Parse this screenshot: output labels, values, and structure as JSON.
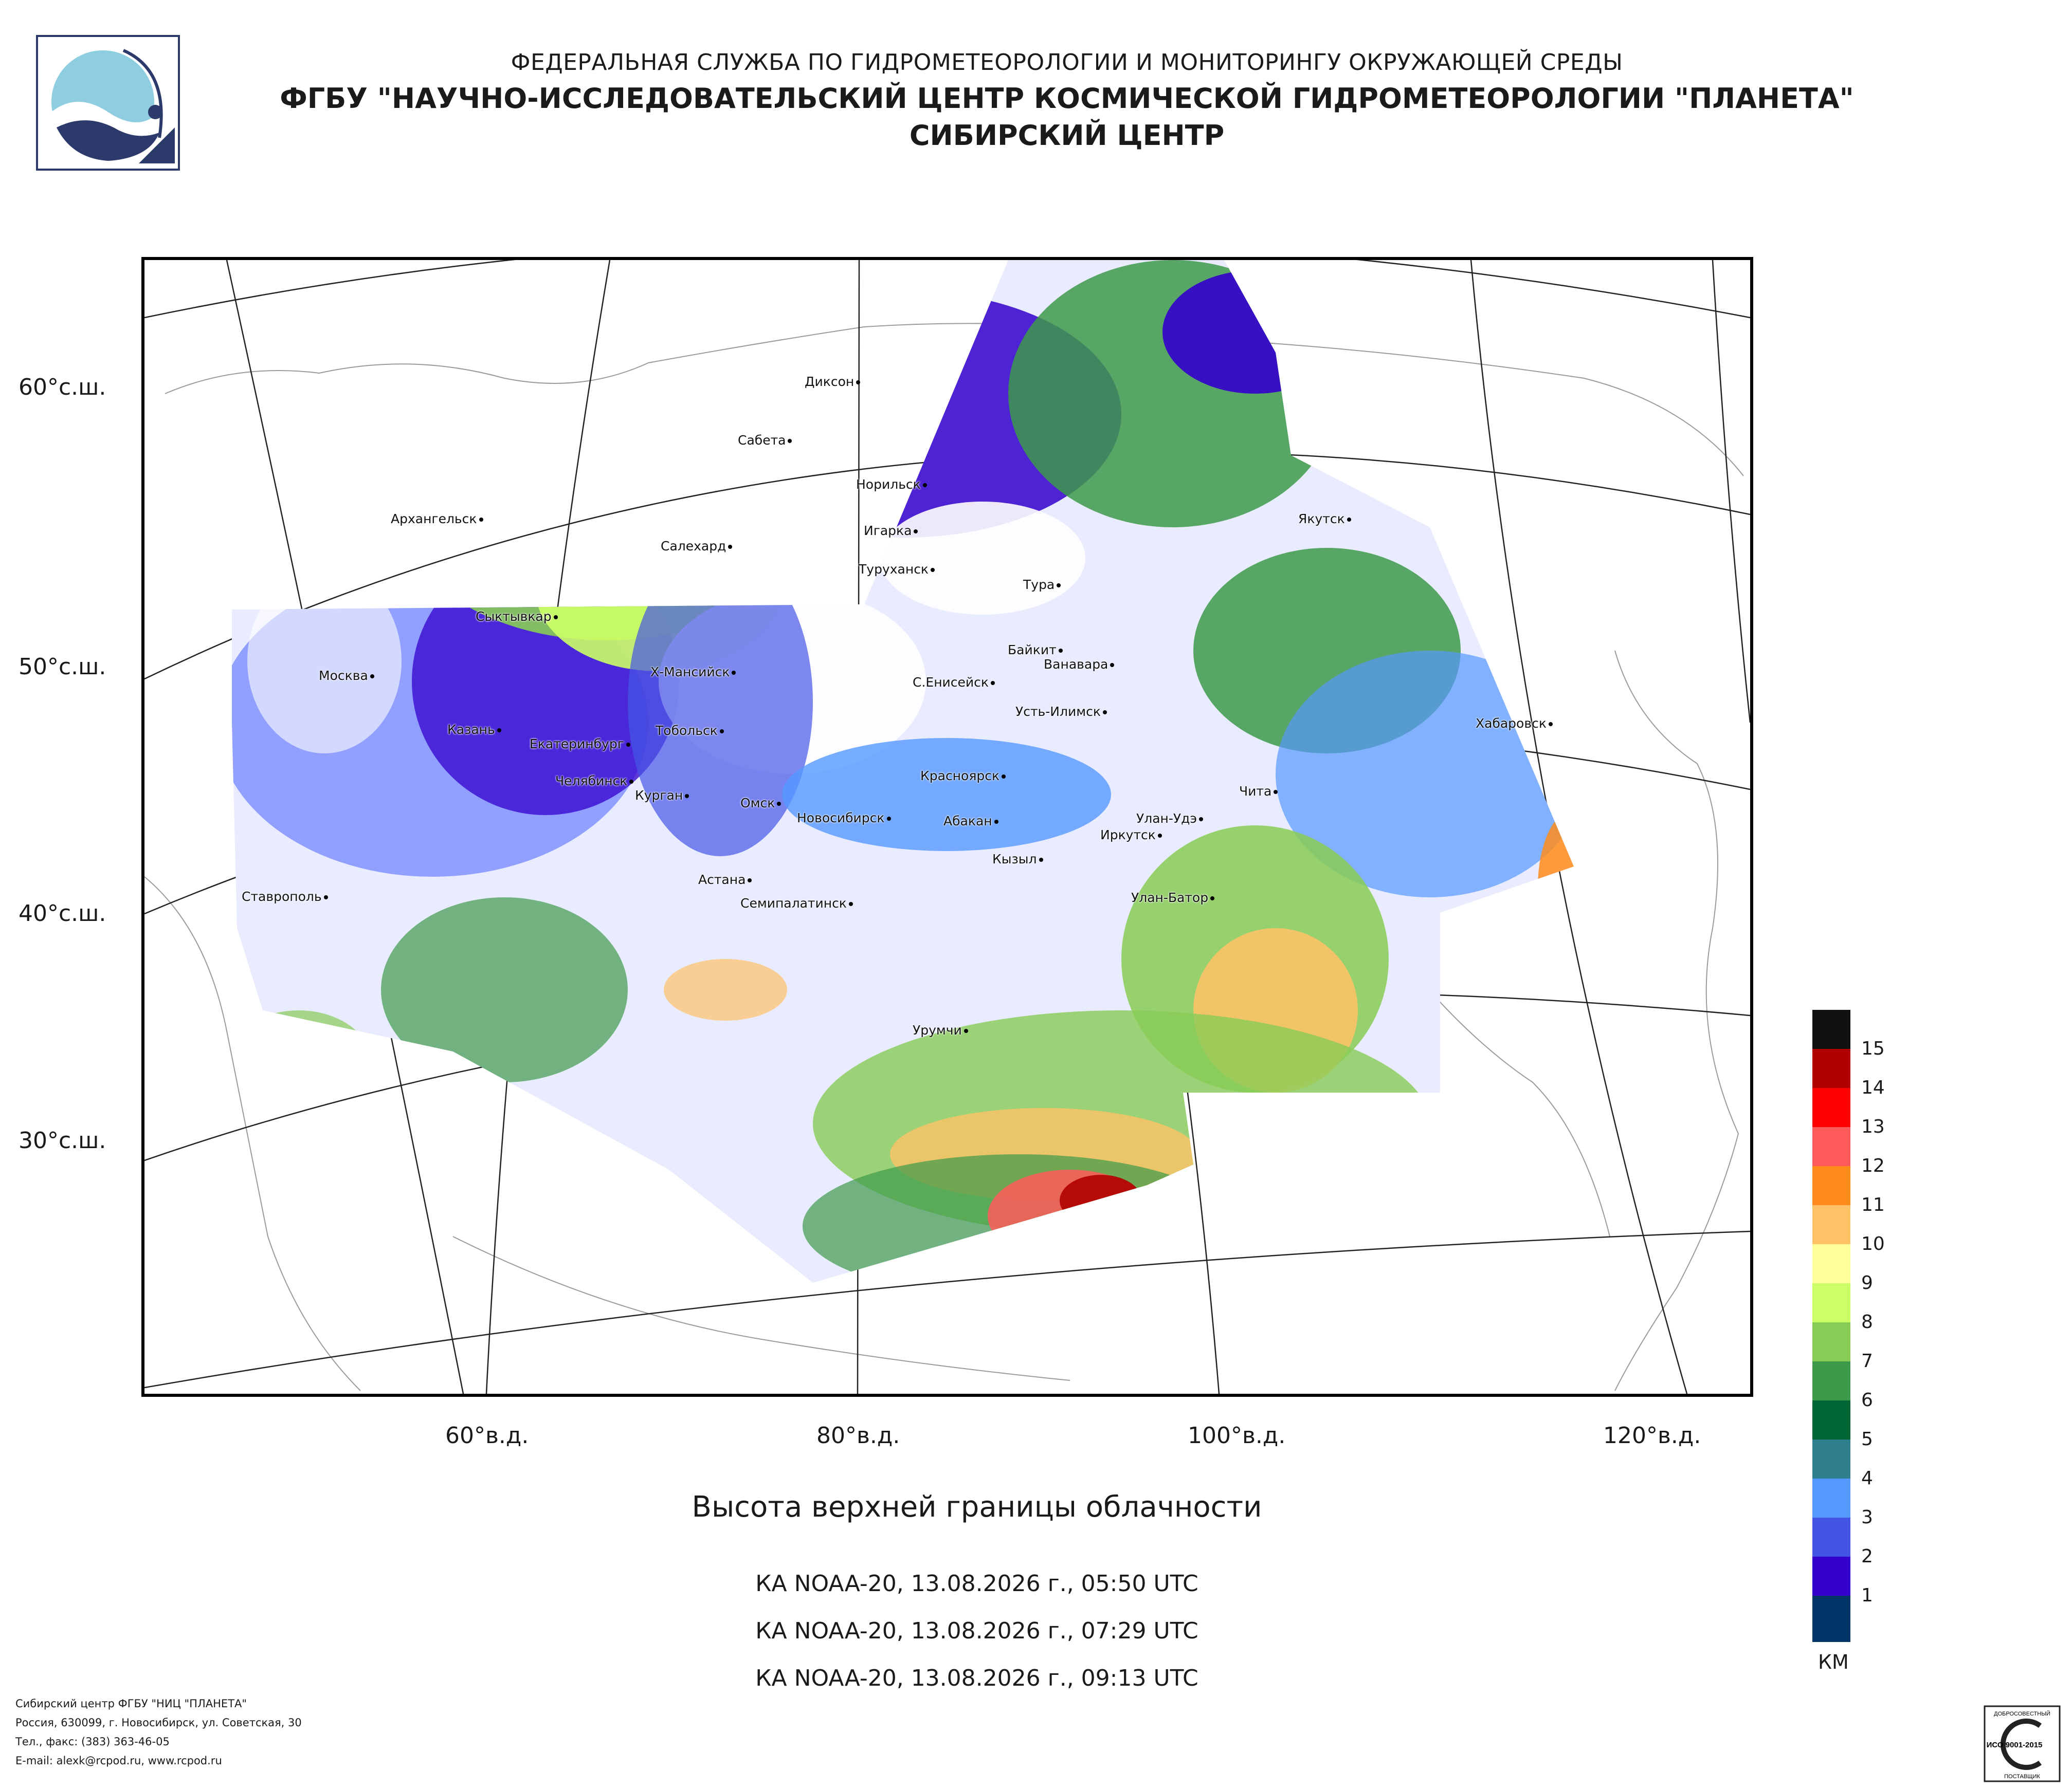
{
  "header": {
    "line1": "ФЕДЕРАЛЬНАЯ СЛУЖБА ПО ГИДРОМЕТЕОРОЛОГИИ И МОНИТОРИНГУ ОКРУЖАЮЩЕЙ СРЕДЫ",
    "line2": "ФГБУ \"НАУЧНО-ИССЛЕДОВАТЕЛЬСКИЙ ЦЕНТР КОСМИЧЕСКОЙ ГИДРОМЕТЕОРОЛОГИИ \"ПЛАНЕТА\"",
    "line3": "СИБИРСКИЙ ЦЕНТР"
  },
  "map": {
    "lat_labels": [
      "60°с.ш.",
      "50°с.ш.",
      "40°с.ш.",
      "30°с.ш."
    ],
    "lon_labels": [
      "60°в.д.",
      "80°в.д.",
      "100°в.д.",
      "120°в.д."
    ],
    "cities": [
      "Диксон",
      "Сабета",
      "Норильск",
      "Архангельск",
      "Игарка",
      "Салехард",
      "Туруханск",
      "Якутск",
      "Тура",
      "Сыктывкар",
      "Байкит",
      "Ванавара",
      "Москва",
      "Х-Мансийск",
      "С.Енисейск",
      "Усть-Илимск",
      "Казань",
      "Тобольск",
      "Хабаровск",
      "Екатеринбург",
      "Красноярск",
      "Челябинск",
      "Курган",
      "Чита",
      "Омск",
      "Новосибирск",
      "Улан-Удэ",
      "Абакан",
      "Иркутск",
      "Кызыл",
      "Астана",
      "Ставрополь",
      "Семипалатинск",
      "Улан-Батор",
      "Урумчи"
    ]
  },
  "legend": {
    "values": [
      "15",
      "14",
      "13",
      "12",
      "11",
      "10",
      "9",
      "8",
      "7",
      "6",
      "5",
      "4",
      "3",
      "2",
      "1"
    ],
    "colors": [
      "#111111",
      "#b00000",
      "#ff0000",
      "#ff5a5a",
      "#ff8c1a",
      "#ffc266",
      "#ffff99",
      "#ccff66",
      "#88cc55",
      "#3d9a4a",
      "#006633",
      "#2f7f8f",
      "#5599ff",
      "#4455e6",
      "#3300cc",
      "#003366"
    ],
    "units": "КМ"
  },
  "title": "Высота верхней границы облачности",
  "passes": [
    "КА NOAA-20, 13.08.2026 г., 05:50 UTC",
    "КА NOAA-20, 13.08.2026 г., 07:29 UTC",
    "КА NOAA-20, 13.08.2026 г., 09:13 UTC"
  ],
  "footer": [
    "Сибирский центр ФГБУ \"НИЦ \"ПЛАНЕТА\"",
    "Россия, 630099, г. Новосибирск, ул. Советская, 30",
    "Тел., факс: (383) 363-46-05",
    "E-mail: alexk@rcpod.ru, www.rcpod.ru"
  ],
  "cert": {
    "top": "ДОБРОСОВЕСТНЫЙ",
    "mid": "ИСО 9001-2015",
    "bottom": "ПОСТАВЩИК"
  }
}
